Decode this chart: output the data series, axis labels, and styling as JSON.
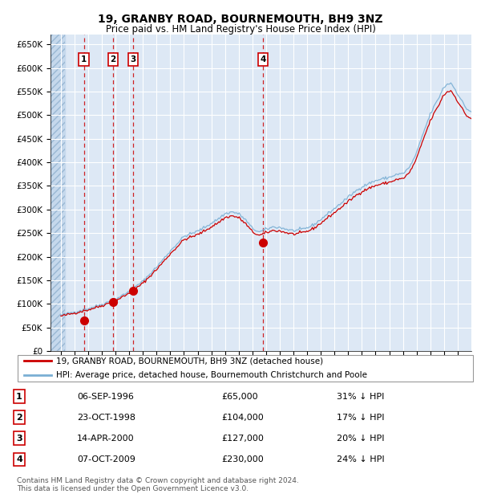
{
  "title": "19, GRANBY ROAD, BOURNEMOUTH, BH9 3NZ",
  "subtitle": "Price paid vs. HM Land Registry's House Price Index (HPI)",
  "ylim": [
    0,
    670000
  ],
  "yticks": [
    0,
    50000,
    100000,
    150000,
    200000,
    250000,
    300000,
    350000,
    400000,
    450000,
    500000,
    550000,
    600000,
    650000
  ],
  "xlim_start": 1994.25,
  "xlim_end": 2025.0,
  "background_color": "#dde8f5",
  "sale_dates": [
    1996.69,
    1998.81,
    2000.29,
    2009.77
  ],
  "sale_prices": [
    65000,
    104000,
    127000,
    230000
  ],
  "sale_labels": [
    "1",
    "2",
    "3",
    "4"
  ],
  "sale_color": "#cc0000",
  "hpi_color": "#7aafd4",
  "legend_line1": "19, GRANBY ROAD, BOURNEMOUTH, BH9 3NZ (detached house)",
  "legend_line2": "HPI: Average price, detached house, Bournemouth Christchurch and Poole",
  "table_data": [
    [
      "1",
      "06-SEP-1996",
      "£65,000",
      "31% ↓ HPI"
    ],
    [
      "2",
      "23-OCT-1998",
      "£104,000",
      "17% ↓ HPI"
    ],
    [
      "3",
      "14-APR-2000",
      "£127,000",
      "20% ↓ HPI"
    ],
    [
      "4",
      "07-OCT-2009",
      "£230,000",
      "24% ↓ HPI"
    ]
  ],
  "footer": "Contains HM Land Registry data © Crown copyright and database right 2024.\nThis data is licensed under the Open Government Licence v3.0.",
  "hatch_end_year": 1995.3
}
